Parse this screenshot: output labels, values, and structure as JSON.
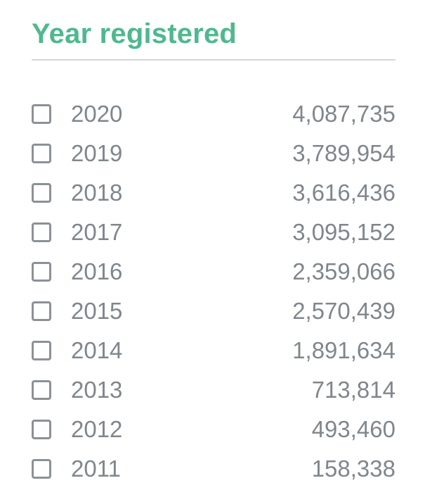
{
  "filter": {
    "title": "Year registered",
    "accent_color": "#4fb88f",
    "text_color": "#80868c",
    "checkbox_icon": "checkbox-unchecked-icon",
    "items": [
      {
        "label": "2020",
        "count": "4,087,735",
        "checked": false
      },
      {
        "label": "2019",
        "count": "3,789,954",
        "checked": false
      },
      {
        "label": "2018",
        "count": "3,616,436",
        "checked": false
      },
      {
        "label": "2017",
        "count": "3,095,152",
        "checked": false
      },
      {
        "label": "2016",
        "count": "2,359,066",
        "checked": false
      },
      {
        "label": "2015",
        "count": "2,570,439",
        "checked": false
      },
      {
        "label": "2014",
        "count": "1,891,634",
        "checked": false
      },
      {
        "label": "2013",
        "count": "713,814",
        "checked": false
      },
      {
        "label": "2012",
        "count": "493,460",
        "checked": false
      },
      {
        "label": "2011",
        "count": "158,338",
        "checked": false
      }
    ]
  }
}
